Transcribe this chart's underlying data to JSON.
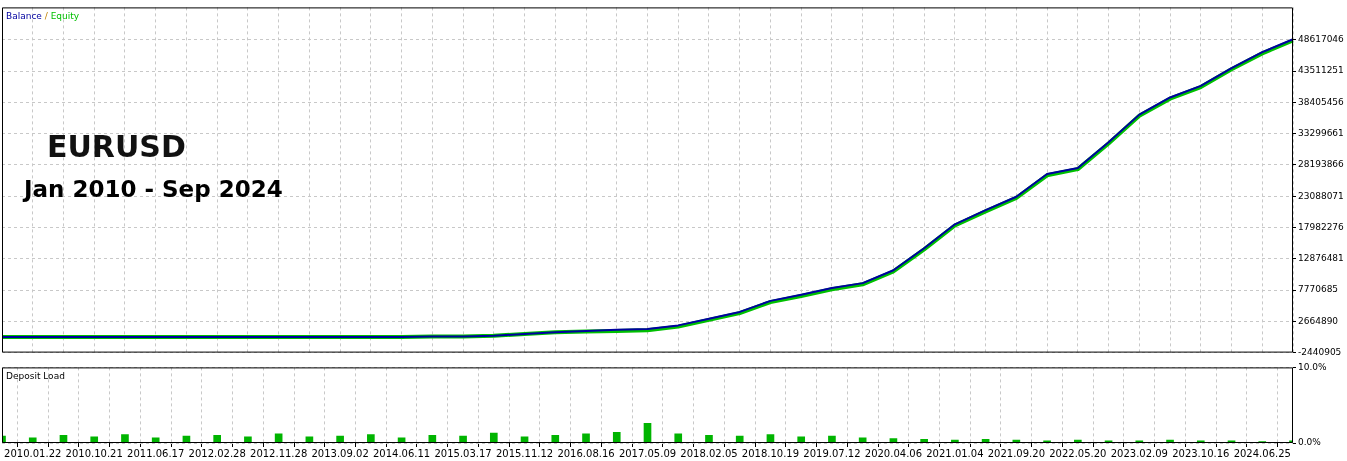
{
  "chart_data": [
    {
      "type": "line",
      "title": "EURUSD",
      "subtitle": "Jan 2010 - Sep 2024",
      "legend": "top left",
      "grid": true,
      "tick_labels": "y",
      "annotations": [
        "/"
      ],
      "categories": [
        null,
        "2010.01.22",
        null,
        "2010.10.21",
        null,
        "2011.06.17",
        null,
        "2012.02.28",
        null,
        "2012.11.28",
        null,
        "2013.09.02",
        null,
        "2014.06.11",
        null,
        "2015.03.17",
        null,
        "2015.11.12",
        null,
        "2016.08.16",
        null,
        "2017.05.09",
        null,
        "2018.02.05",
        null,
        "2018.10.19",
        null,
        "2019.07.12",
        null,
        "2020.04.06",
        null,
        "2021.01.04",
        null,
        "2021.09.20",
        null,
        "2022.05.20",
        null,
        "2023.02.09",
        null,
        "2023.10.16",
        null,
        "2024.06.25",
        null
      ],
      "series": [
        {
          "name": "Equity",
          "color": "#00c000",
          "values": [
            100000.0,
            100000.0,
            100000.0,
            100000.0,
            100000.0,
            100000.0,
            100000.0,
            100000.0,
            100000.0,
            100000.0,
            100000.0,
            100000.0,
            100000.0,
            100000.0,
            200000.0,
            200000.0,
            300000.0,
            600000.0,
            900000.0,
            1000000.0,
            1100000.0,
            1200000.0,
            1800000.0,
            2900000.0,
            4000000.0,
            5800000.0,
            6800000.0,
            7900000.0,
            8700000.0,
            10800000.0,
            14400000.0,
            18300000.0,
            20600000.0,
            22800000.0,
            26500000.0,
            27500000.0,
            31700000.0,
            36200000.0,
            39000000.0,
            40900000.0,
            43800000.0,
            46400000.0,
            48500000.0
          ]
        },
        {
          "name": "Balance",
          "color": "#0000a0",
          "values": [
            100000.0,
            100000.0,
            100000.0,
            100000.0,
            100000.0,
            100000.0,
            100000.0,
            100000.0,
            100000.0,
            100000.0,
            100000.0,
            100000.0,
            100000.0,
            100000.0,
            200000.0,
            200000.0,
            300000.0,
            600000.0,
            900000.0,
            1100000.0,
            1300000.0,
            1400000.0,
            2000000.0,
            3100000.0,
            4200000.0,
            6000000.0,
            7000000.0,
            8100000.0,
            8900000.0,
            11000000.0,
            14600000.0,
            18500000.0,
            20800000.0,
            23000000.0,
            26700000.0,
            27700000.0,
            31900000.0,
            36400000.0,
            39200000.0,
            41100000.0,
            44000000.0,
            46600000.0,
            48700000.0
          ]
        }
      ],
      "ylim": [
        -2440905,
        53900000
      ],
      "yticks": [
        -2440905,
        2664890,
        7770685,
        12876481,
        17982276,
        23088071,
        28193866,
        33299661,
        38405456,
        43511251,
        48617046
      ]
    },
    {
      "type": "bar",
      "title": "Deposit Load",
      "grid": true,
      "categories": [
        null,
        "2010.01.22",
        null,
        "2010.10.21",
        null,
        "2011.06.17",
        null,
        "2012.02.28",
        null,
        "2012.11.28",
        null,
        "2013.09.02",
        null,
        "2014.06.11",
        null,
        "2015.03.17",
        null,
        "2015.11.12",
        null,
        "2016.08.16",
        null,
        "2017.05.09",
        null,
        "2018.02.05",
        null,
        "2018.10.19",
        null,
        "2019.07.12",
        null,
        "2020.04.06",
        null,
        "2021.01.04",
        null,
        "2021.09.20",
        null,
        "2022.05.20",
        null,
        "2023.02.09",
        null,
        "2023.10.16",
        null,
        "2024.06.25",
        null
      ],
      "series": [
        {
          "color": "#00b400",
          "values": [
            0.9,
            0.7,
            1.0,
            0.8,
            1.1,
            0.7,
            0.9,
            1.0,
            0.8,
            1.2,
            0.8,
            0.9,
            1.1,
            0.7,
            1.0,
            0.9,
            1.3,
            0.8,
            1.0,
            1.2,
            1.4,
            2.6,
            1.2,
            1.0,
            0.9,
            1.1,
            0.8,
            0.9,
            0.7,
            0.6,
            0.5,
            0.4,
            0.5,
            0.4,
            0.3,
            0.4,
            0.3,
            0.3,
            0.4,
            0.3,
            0.3,
            0.2,
            0.3
          ]
        }
      ],
      "ylim": [
        0,
        10
      ],
      "yticks": [
        {
          "value": 0,
          "label": "0.0%"
        },
        {
          "value": 10,
          "label": "10.0%"
        }
      ]
    }
  ]
}
